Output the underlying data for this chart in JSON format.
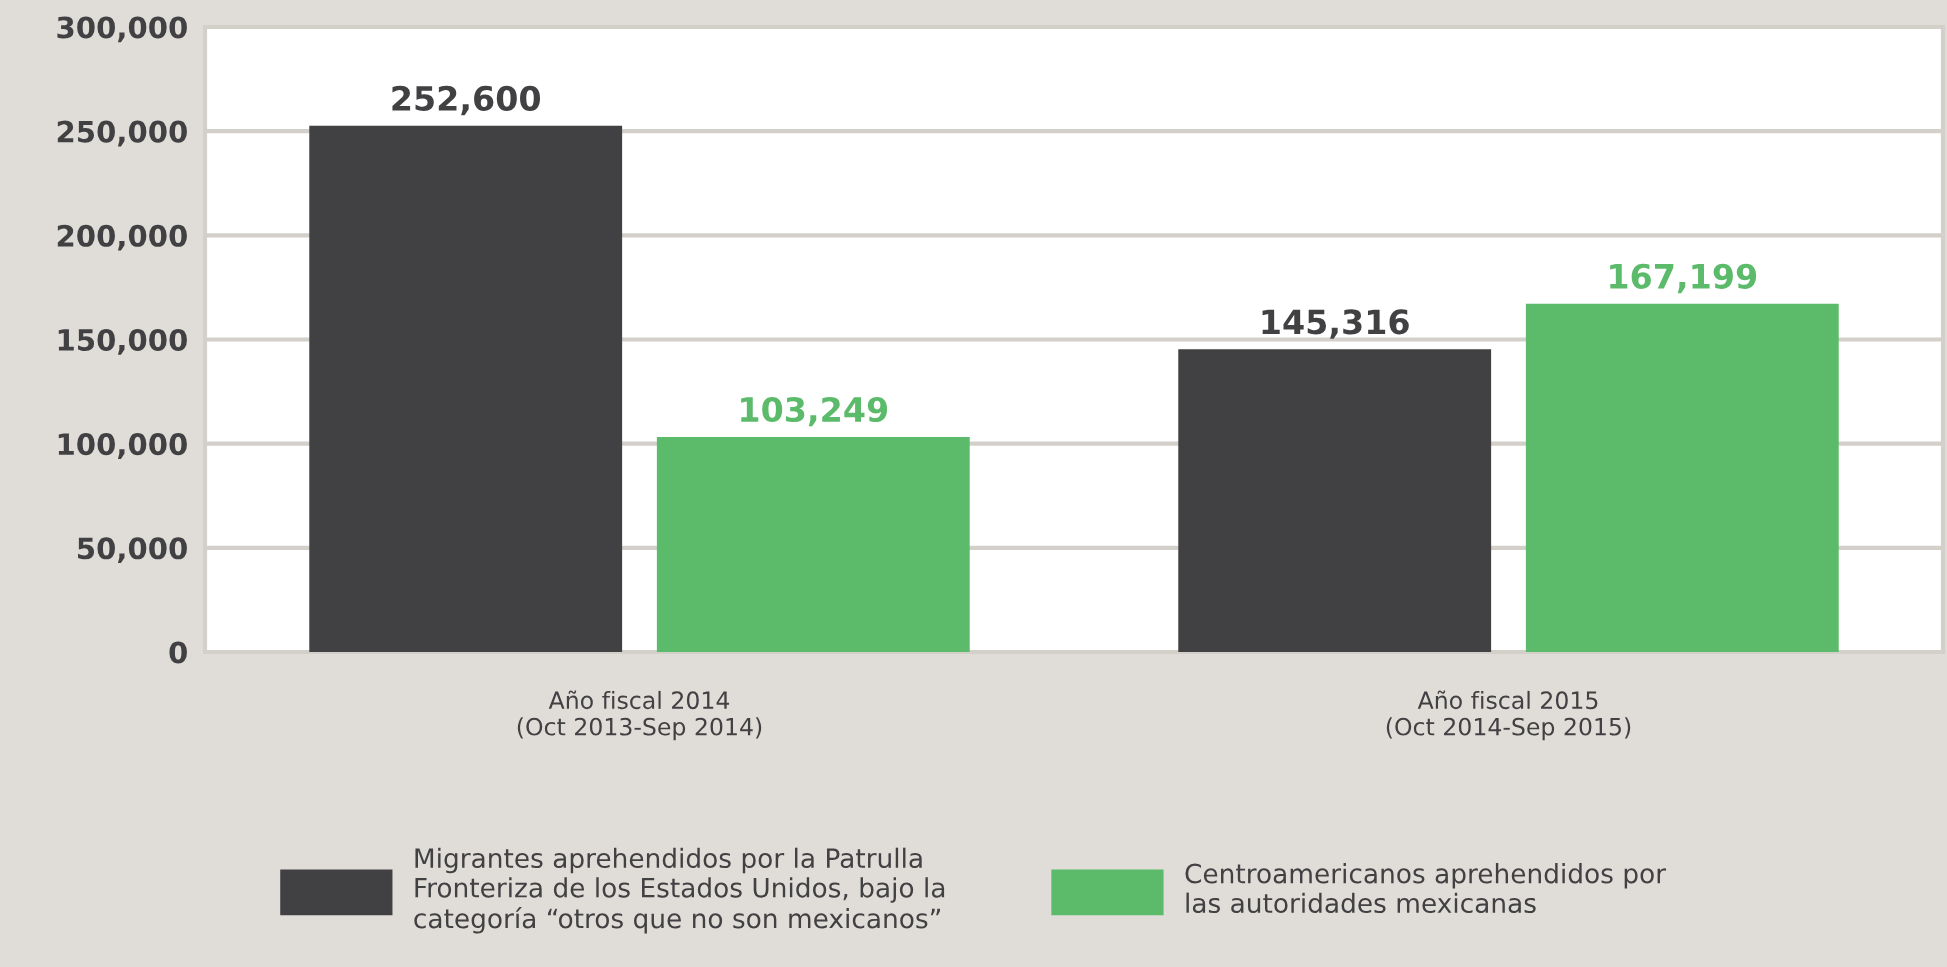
{
  "chart_data": {
    "type": "bar",
    "categories": [
      "Año fiscal 2014\n(Oct 2013-Sep 2014)",
      "Año fiscal 2015\n(Oct 2014-Sep 2015)"
    ],
    "series": [
      {
        "name": "Migrantes aprehendidos por la Patrulla\nFronteriza de los Estados Unidos, bajo la\ncategoría “otros que no son mexicanos”",
        "color": "#414042",
        "values": [
          252600,
          145316
        ],
        "value_labels": [
          "252,600",
          "145,316"
        ]
      },
      {
        "name": "Centroamericanos aprehendidos por\nlas autoridades mexicanas",
        "color": "#5cbb6a",
        "values": [
          103249,
          167199
        ],
        "value_labels": [
          "103,249",
          "167,199"
        ]
      }
    ],
    "ylim": [
      0,
      300000
    ],
    "yticks": [
      0,
      {
        "value": 50000,
        "label": "50,000"
      },
      {
        "value": 100000,
        "label": "100,000"
      },
      {
        "value": 150000,
        "label": "150,000"
      },
      {
        "value": 200000,
        "label": "200,000"
      },
      {
        "value": 250000,
        "label": "250,000"
      },
      {
        "value": 300000,
        "label": "300,000"
      }
    ],
    "grid": "y",
    "legend": "bottom"
  }
}
